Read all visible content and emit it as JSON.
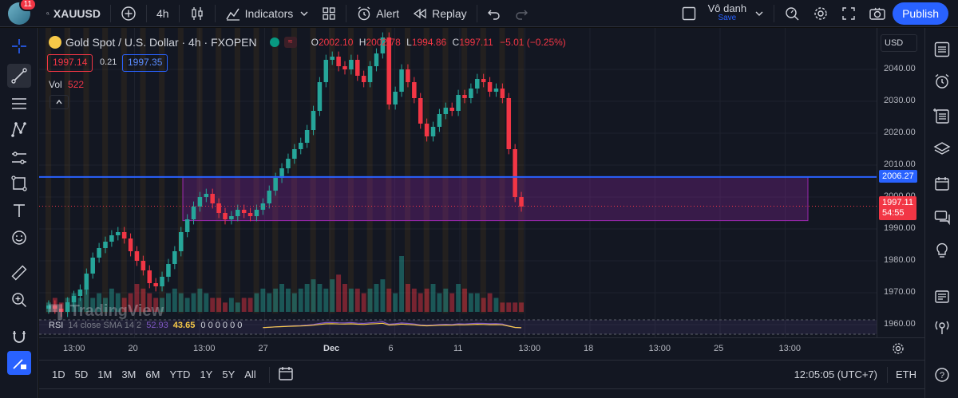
{
  "topbar": {
    "notification_count": "11",
    "symbol": "XAUUSD",
    "interval": "4h",
    "indicators_label": "Indicators",
    "alert_label": "Alert",
    "replay_label": "Replay",
    "layout_name": "Vô danh",
    "layout_status": "Save",
    "publish_label": "Publish"
  },
  "legend": {
    "title": "Gold Spot / U.S. Dollar · 4h · FXOPEN",
    "open_label": "O",
    "open": "2002.10",
    "high_label": "H",
    "high": "2002.78",
    "low_label": "L",
    "low": "1994.86",
    "close_label": "C",
    "close": "1997.11",
    "change": "−5.01 (−0.25%)",
    "sell": "1997.14",
    "spread": "0.21",
    "buy": "1997.35",
    "vol_label": "Vol",
    "vol_value": "522",
    "rsi_label": "RSI",
    "rsi_params": "14 close SMA 14 2",
    "rsi_value1": "52.93",
    "rsi_value2": "43.65",
    "rsi_zeros": "0 0 0 0 0 0",
    "watermark": "TradingView"
  },
  "price_axis": {
    "currency": "USD",
    "ticks": [
      "2040.00",
      "2030.00",
      "2020.00",
      "2010.00",
      "2000.00",
      "1990.00",
      "1980.00",
      "1970.00",
      "1960.00"
    ],
    "line_price": "2006.27",
    "last_price": "1997.11",
    "countdown": "54:55"
  },
  "time_axis": {
    "ticks": [
      "13:00",
      "20",
      "13:00",
      "27",
      "Dec",
      "6",
      "11",
      "13:00",
      "18",
      "13:00",
      "25",
      "13:00"
    ]
  },
  "bottombar": {
    "ranges": [
      "1D",
      "5D",
      "1M",
      "3M",
      "6M",
      "YTD",
      "1Y",
      "5Y",
      "All"
    ],
    "clock": "12:05:05 (UTC+7)",
    "session": "ETH"
  },
  "colors": {
    "up": "#26a69a",
    "down": "#f23645",
    "accent": "#2962ff",
    "zone": "#9c27b0",
    "background": "#131722"
  },
  "chart_data": {
    "type": "candlestick",
    "symbol": "XAUUSD",
    "ylim": [
      1956,
      2053
    ],
    "y_ticks": [
      1960,
      1970,
      1980,
      1990,
      2000,
      2010,
      2020,
      2030,
      2040
    ],
    "x_ticks": [
      "13:00",
      "20",
      "13:00",
      "27",
      "Dec",
      "6",
      "11",
      "13:00",
      "18",
      "13:00",
      "25",
      "13:00"
    ],
    "horizontal_line": 2006.27,
    "zone": {
      "top": 2006.27,
      "bottom": 1992.6
    },
    "last_price": 1997.11,
    "close_series": [
      1966,
      1965,
      1964,
      1967,
      1969,
      1971,
      1976,
      1981,
      1984,
      1986,
      1988,
      1989,
      1987,
      1983,
      1980,
      1977,
      1973,
      1972,
      1975,
      1979,
      1983,
      1989,
      1993,
      1997,
      2000,
      2001,
      1998,
      1995,
      1993,
      1994,
      1996,
      1995,
      1994,
      1996,
      1998,
      2002,
      2006,
      2009,
      2012,
      2015,
      2017,
      2021,
      2027,
      2036,
      2043,
      2044,
      2041,
      2040,
      2043,
      2038,
      2036,
      2041,
      2045,
      2050,
      2029,
      2033,
      2040,
      2036,
      2031,
      2023,
      2019,
      2022,
      2026,
      2028,
      2027,
      2032,
      2031,
      2034,
      2037,
      2036,
      2033,
      2034,
      2031,
      2015,
      2000,
      1997
    ],
    "volume_series": [
      2,
      3,
      2,
      3,
      4,
      3,
      5,
      3,
      4,
      3,
      5,
      4,
      3,
      4,
      6,
      5,
      4,
      3,
      3,
      4,
      5,
      4,
      3,
      4,
      5,
      4,
      3,
      3,
      2,
      3,
      2,
      3,
      3,
      4,
      5,
      4,
      5,
      6,
      5,
      4,
      5,
      6,
      7,
      6,
      5,
      7,
      8,
      6,
      5,
      5,
      4,
      5,
      6,
      7,
      5,
      4,
      12,
      6,
      5,
      4,
      5,
      6,
      4,
      5,
      4,
      6,
      5,
      4,
      4,
      3,
      4,
      3,
      2,
      2,
      2,
      2
    ]
  }
}
